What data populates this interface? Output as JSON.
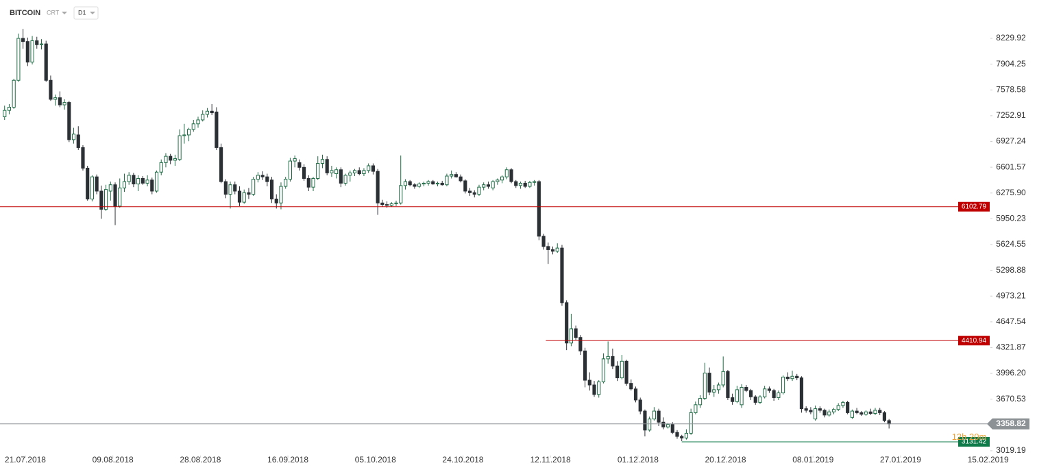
{
  "header": {
    "symbol": "BITCOIN",
    "group": "CRT",
    "interval": "D1"
  },
  "chart_data": {
    "type": "candlestick",
    "up_color": "#1e6b45",
    "down_color": "#2b3035",
    "ohlc": [
      [
        7240,
        7380,
        7200,
        7320
      ],
      [
        7320,
        7400,
        7270,
        7360
      ],
      [
        7360,
        7720,
        7340,
        7700
      ],
      [
        7700,
        8290,
        7680,
        8230
      ],
      [
        8230,
        8350,
        8100,
        8190
      ],
      [
        8190,
        8240,
        7880,
        7930
      ],
      [
        7930,
        8260,
        7900,
        8200
      ],
      [
        8200,
        8250,
        8100,
        8150
      ],
      [
        8150,
        8220,
        8090,
        8160
      ],
      [
        8160,
        8200,
        7680,
        7700
      ],
      [
        7700,
        7760,
        7440,
        7460
      ],
      [
        7460,
        7520,
        7380,
        7480
      ],
      [
        7480,
        7560,
        7360,
        7390
      ],
      [
        7390,
        7460,
        7330,
        7420
      ],
      [
        7420,
        7440,
        6920,
        6950
      ],
      [
        6950,
        7100,
        6900,
        7020
      ],
      [
        7010,
        7120,
        6820,
        6850
      ],
      [
        6850,
        6880,
        6560,
        6590
      ],
      [
        6590,
        6620,
        6180,
        6200
      ],
      [
        6200,
        6500,
        6170,
        6480
      ],
      [
        6480,
        6510,
        6260,
        6300
      ],
      [
        6300,
        6370,
        5950,
        6070
      ],
      [
        6070,
        6380,
        6050,
        6320
      ],
      [
        6300,
        6420,
        6180,
        6380
      ],
      [
        6380,
        6410,
        5870,
        6110
      ],
      [
        6110,
        6460,
        6090,
        6340
      ],
      [
        6340,
        6520,
        6290,
        6420
      ],
      [
        6420,
        6540,
        6380,
        6500
      ],
      [
        6500,
        6530,
        6350,
        6390
      ],
      [
        6390,
        6500,
        6300,
        6460
      ],
      [
        6460,
        6490,
        6380,
        6400
      ],
      [
        6400,
        6500,
        6360,
        6440
      ],
      [
        6440,
        6470,
        6260,
        6300
      ],
      [
        6300,
        6560,
        6280,
        6540
      ],
      [
        6540,
        6700,
        6500,
        6660
      ],
      [
        6660,
        6780,
        6600,
        6740
      ],
      [
        6740,
        6770,
        6640,
        6690
      ],
      [
        6690,
        6760,
        6620,
        6710
      ],
      [
        6700,
        7080,
        6680,
        7000
      ],
      [
        7000,
        7150,
        6900,
        7010
      ],
      [
        7010,
        7100,
        6930,
        7080
      ],
      [
        7080,
        7200,
        7050,
        7150
      ],
      [
        7150,
        7240,
        7100,
        7200
      ],
      [
        7200,
        7320,
        7180,
        7270
      ],
      [
        7270,
        7350,
        7230,
        7310
      ],
      [
        7310,
        7400,
        7260,
        7290
      ],
      [
        7300,
        7360,
        6820,
        6850
      ],
      [
        6850,
        6900,
        6400,
        6420
      ],
      [
        6420,
        6450,
        6210,
        6260
      ],
      [
        6260,
        6420,
        6080,
        6380
      ],
      [
        6380,
        6420,
        6260,
        6300
      ],
      [
        6300,
        6360,
        6110,
        6160
      ],
      [
        6160,
        6320,
        6140,
        6280
      ],
      [
        6280,
        6340,
        6200,
        6260
      ],
      [
        6260,
        6480,
        6240,
        6450
      ],
      [
        6450,
        6540,
        6410,
        6500
      ],
      [
        6500,
        6550,
        6440,
        6480
      ],
      [
        6480,
        6520,
        6360,
        6420
      ],
      [
        6440,
        6480,
        6150,
        6200
      ],
      [
        6200,
        6260,
        6080,
        6150
      ],
      [
        6150,
        6410,
        6070,
        6360
      ],
      [
        6360,
        6480,
        6330,
        6450
      ],
      [
        6450,
        6720,
        6420,
        6680
      ],
      [
        6680,
        6750,
        6600,
        6710
      ],
      [
        6660,
        6700,
        6560,
        6600
      ],
      [
        6600,
        6640,
        6430,
        6460
      ],
      [
        6460,
        6500,
        6300,
        6350
      ],
      [
        6350,
        6480,
        6300,
        6460
      ],
      [
        6460,
        6740,
        6440,
        6650
      ],
      [
        6650,
        6760,
        6590,
        6700
      ],
      [
        6700,
        6740,
        6500,
        6530
      ],
      [
        6530,
        6620,
        6480,
        6560
      ],
      [
        6520,
        6600,
        6460,
        6570
      ],
      [
        6570,
        6600,
        6350,
        6400
      ],
      [
        6400,
        6520,
        6370,
        6500
      ],
      [
        6500,
        6560,
        6420,
        6530
      ],
      [
        6530,
        6580,
        6490,
        6560
      ],
      [
        6560,
        6600,
        6500,
        6520
      ],
      [
        6520,
        6590,
        6490,
        6560
      ],
      [
        6560,
        6650,
        6530,
        6620
      ],
      [
        6620,
        6650,
        6510,
        6550
      ],
      [
        6550,
        6580,
        6000,
        6150
      ],
      [
        6150,
        6190,
        6100,
        6130
      ],
      [
        6130,
        6170,
        6090,
        6120
      ],
      [
        6120,
        6160,
        6100,
        6140
      ],
      [
        6140,
        6180,
        6110,
        6150
      ],
      [
        6150,
        6750,
        6130,
        6370
      ],
      [
        6370,
        6450,
        6320,
        6420
      ],
      [
        6420,
        6440,
        6360,
        6380
      ],
      [
        6380,
        6400,
        6330,
        6360
      ],
      [
        6360,
        6410,
        6340,
        6390
      ],
      [
        6390,
        6420,
        6360,
        6400
      ],
      [
        6400,
        6440,
        6370,
        6420
      ],
      [
        6420,
        6440,
        6380,
        6390
      ],
      [
        6390,
        6420,
        6360,
        6400
      ],
      [
        6400,
        6430,
        6370,
        6380
      ],
      [
        6380,
        6520,
        6360,
        6490
      ],
      [
        6490,
        6560,
        6460,
        6510
      ],
      [
        6510,
        6540,
        6470,
        6480
      ],
      [
        6480,
        6510,
        6410,
        6430
      ],
      [
        6430,
        6450,
        6270,
        6300
      ],
      [
        6300,
        6340,
        6240,
        6280
      ],
      [
        6280,
        6310,
        6220,
        6260
      ],
      [
        6260,
        6380,
        6240,
        6350
      ],
      [
        6350,
        6410,
        6310,
        6380
      ],
      [
        6380,
        6420,
        6330,
        6360
      ],
      [
        6340,
        6440,
        6310,
        6420
      ],
      [
        6420,
        6460,
        6380,
        6440
      ],
      [
        6440,
        6500,
        6400,
        6480
      ],
      [
        6480,
        6600,
        6450,
        6570
      ],
      [
        6570,
        6590,
        6400,
        6420
      ],
      [
        6420,
        6440,
        6340,
        6370
      ],
      [
        6370,
        6420,
        6330,
        6400
      ],
      [
        6400,
        6430,
        6340,
        6360
      ],
      [
        6360,
        6430,
        6340,
        6410
      ],
      [
        6410,
        6440,
        6370,
        6420
      ],
      [
        6420,
        6440,
        5680,
        5730
      ],
      [
        5730,
        5760,
        5560,
        5600
      ],
      [
        5600,
        5650,
        5380,
        5560
      ],
      [
        5560,
        5600,
        5500,
        5540
      ],
      [
        5540,
        5640,
        5520,
        5580
      ],
      [
        5580,
        5620,
        4850,
        4890
      ],
      [
        4890,
        4920,
        4290,
        4380
      ],
      [
        4380,
        4750,
        4340,
        4560
      ],
      [
        4560,
        4600,
        4420,
        4450
      ],
      [
        4450,
        4480,
        4230,
        4280
      ],
      [
        4280,
        4320,
        3820,
        3910
      ],
      [
        3910,
        4010,
        3780,
        3850
      ],
      [
        3850,
        3900,
        3700,
        3730
      ],
      [
        3730,
        3910,
        3690,
        3890
      ],
      [
        3890,
        4250,
        3870,
        4180
      ],
      [
        4180,
        4400,
        4120,
        4210
      ],
      [
        4210,
        4310,
        4050,
        4090
      ],
      [
        4090,
        4150,
        3900,
        3940
      ],
      [
        3940,
        4230,
        3920,
        4150
      ],
      [
        4150,
        4170,
        3840,
        3870
      ],
      [
        3870,
        3920,
        3780,
        3800
      ],
      [
        3800,
        3830,
        3630,
        3660
      ],
      [
        3660,
        3690,
        3480,
        3520
      ],
      [
        3520,
        3540,
        3200,
        3280
      ],
      [
        3280,
        3450,
        3260,
        3420
      ],
      [
        3420,
        3570,
        3400,
        3520
      ],
      [
        3520,
        3550,
        3330,
        3380
      ],
      [
        3380,
        3440,
        3290,
        3320
      ],
      [
        3320,
        3370,
        3300,
        3350
      ],
      [
        3350,
        3380,
        3230,
        3250
      ],
      [
        3250,
        3280,
        3170,
        3200
      ],
      [
        3200,
        3220,
        3140,
        3180
      ],
      [
        3180,
        3290,
        3160,
        3240
      ],
      [
        3240,
        3550,
        3220,
        3500
      ],
      [
        3500,
        3640,
        3480,
        3600
      ],
      [
        3600,
        3720,
        3560,
        3680
      ],
      [
        3680,
        4130,
        3660,
        4000
      ],
      [
        4000,
        4070,
        3720,
        3760
      ],
      [
        3760,
        3850,
        3700,
        3790
      ],
      [
        3790,
        3880,
        3740,
        3850
      ],
      [
        3850,
        4210,
        3820,
        4020
      ],
      [
        4020,
        4040,
        3660,
        3690
      ],
      [
        3690,
        3740,
        3600,
        3640
      ],
      [
        3640,
        3840,
        3620,
        3790
      ],
      [
        3600,
        3860,
        3560,
        3820
      ],
      [
        3820,
        3850,
        3760,
        3780
      ],
      [
        3780,
        3800,
        3660,
        3700
      ],
      [
        3700,
        3720,
        3600,
        3630
      ],
      [
        3630,
        3720,
        3610,
        3700
      ],
      [
        3700,
        3840,
        3680,
        3800
      ],
      [
        3800,
        3830,
        3750,
        3780
      ],
      [
        3780,
        3800,
        3650,
        3690
      ],
      [
        3690,
        3780,
        3660,
        3750
      ],
      [
        3750,
        3970,
        3730,
        3950
      ],
      [
        3950,
        4010,
        3900,
        3930
      ],
      [
        3930,
        4030,
        3900,
        3960
      ],
      [
        3960,
        3990,
        3910,
        3940
      ],
      [
        3940,
        3960,
        3500,
        3550
      ],
      [
        3550,
        3580,
        3500,
        3530
      ],
      [
        3530,
        3570,
        3480,
        3510
      ],
      [
        3420,
        3590,
        3400,
        3550
      ],
      [
        3550,
        3580,
        3500,
        3530
      ],
      [
        3530,
        3550,
        3440,
        3470
      ],
      [
        3470,
        3540,
        3450,
        3510
      ],
      [
        3510,
        3560,
        3480,
        3540
      ],
      [
        3540,
        3620,
        3520,
        3590
      ],
      [
        3590,
        3650,
        3560,
        3630
      ],
      [
        3630,
        3650,
        3480,
        3500
      ],
      [
        3440,
        3540,
        3420,
        3520
      ],
      [
        3520,
        3560,
        3480,
        3500
      ],
      [
        3500,
        3520,
        3460,
        3480
      ],
      [
        3480,
        3530,
        3460,
        3510
      ],
      [
        3510,
        3550,
        3470,
        3490
      ],
      [
        3490,
        3560,
        3470,
        3530
      ],
      [
        3530,
        3560,
        3470,
        3500
      ],
      [
        3500,
        3520,
        3380,
        3400
      ],
      [
        3400,
        3420,
        3300,
        3358.82
      ]
    ],
    "xlim": [
      -1,
      214
    ],
    "xticks": [
      {
        "value": 4.5,
        "label": "21.07.2018"
      },
      {
        "value": 23.5,
        "label": "09.08.2018"
      },
      {
        "value": 42.5,
        "label": "28.08.2018"
      },
      {
        "value": 61.5,
        "label": "16.09.2018"
      },
      {
        "value": 80.5,
        "label": "05.10.2018"
      },
      {
        "value": 99.5,
        "label": "24.10.2018"
      },
      {
        "value": 118.5,
        "label": "12.11.2018"
      },
      {
        "value": 137.5,
        "label": "01.12.2018"
      },
      {
        "value": 156.5,
        "label": "20.12.2018"
      },
      {
        "value": 175.5,
        "label": "08.01.2019"
      },
      {
        "value": 194.5,
        "label": "27.01.2019"
      },
      {
        "value": 213.5,
        "label": "15.02.2019"
      }
    ],
    "ylim": [
      2932,
      8715
    ],
    "yticks": [
      8229.92,
      7904.25,
      7578.58,
      7252.91,
      6927.24,
      6601.57,
      {
        "value": 6275.9,
        "label": "6275.90"
      },
      5950.23,
      5624.55,
      5298.88,
      4973.21,
      4647.54,
      4321.87,
      {
        "value": 3996.2,
        "label": "3996.20"
      },
      3670.53,
      3019.19
    ],
    "levels": [
      {
        "value": 6102.79,
        "color": "#c00000"
      },
      {
        "value": 4410.94,
        "color": "#c00000",
        "start": 117.5
      },
      {
        "value": 3131.42,
        "color": "#0f7a4a",
        "start": 147
      }
    ],
    "last_price": {
      "value": 3358.82,
      "color": "#8c9196"
    },
    "countdown": "12h 20m"
  }
}
